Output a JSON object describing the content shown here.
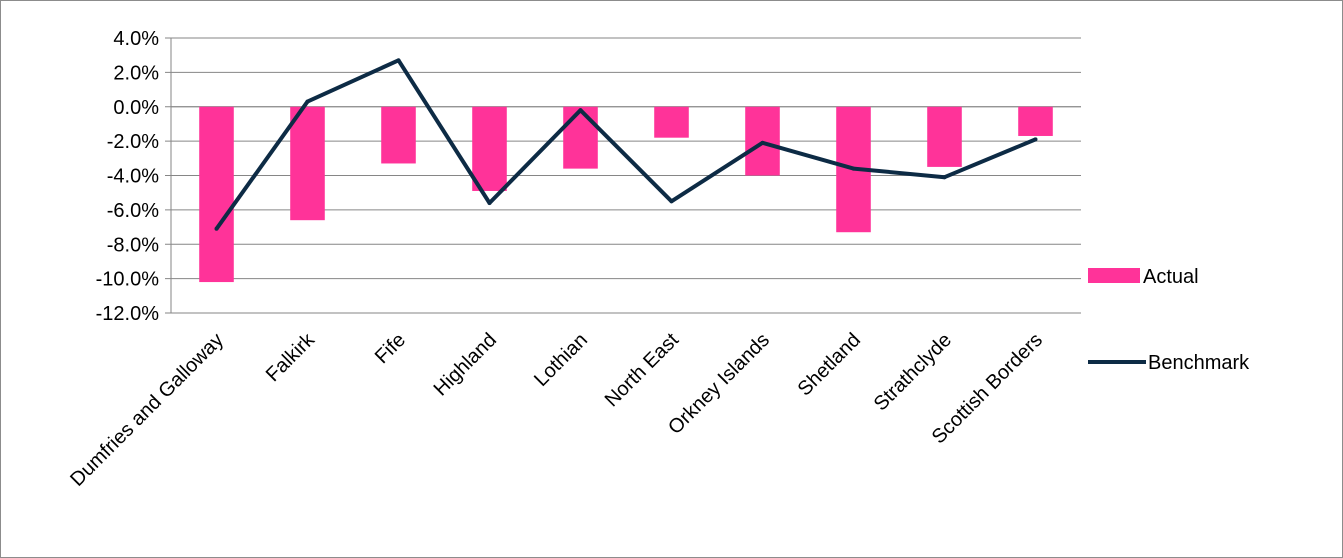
{
  "chart_data": {
    "type": "bar",
    "categories": [
      "Dumfries and Galloway",
      "Falkirk",
      "Fife",
      "Highland",
      "Lothian",
      "North East",
      "Orkney Islands",
      "Shetland",
      "Strathclyde",
      "Scottish Borders"
    ],
    "series": [
      {
        "name": "Actual",
        "type": "bar",
        "color": "#ff3399",
        "values": [
          -10.2,
          -6.6,
          -3.3,
          -4.9,
          -3.6,
          -1.8,
          -4.0,
          -7.3,
          -3.5,
          -1.7
        ]
      },
      {
        "name": "Benchmark",
        "type": "line",
        "color": "#0d2b45",
        "values": [
          -7.1,
          0.3,
          2.7,
          -5.6,
          -0.2,
          -5.5,
          -2.1,
          -3.6,
          -4.1,
          -1.9
        ]
      }
    ],
    "ylim": [
      -12.0,
      4.0
    ],
    "yticks": [
      "4.0%",
      "2.0%",
      "0.0%",
      "-2.0%",
      "-4.0%",
      "-6.0%",
      "-8.0%",
      "-10.0%",
      "-12.0%"
    ],
    "ytick_values": [
      4,
      2,
      0,
      -2,
      -4,
      -6,
      -8,
      -10,
      -12
    ],
    "grid": true,
    "legend_position": "right",
    "title": "",
    "xlabel": "",
    "ylabel": ""
  }
}
